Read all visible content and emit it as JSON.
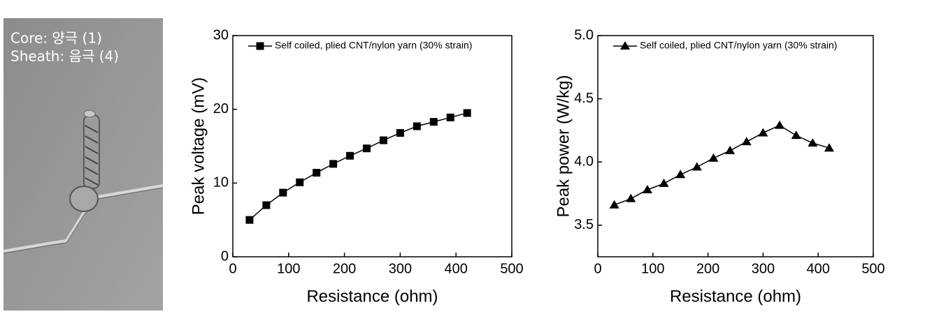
{
  "photo": {
    "labels": [
      "Core: 양극 (1)",
      "Sheath: 음극 (4)"
    ]
  },
  "chart_data": [
    {
      "type": "line",
      "x_label": "Resistance (ohm)",
      "y_label": "Peak voltage (mV)",
      "x": [
        30,
        60,
        90,
        120,
        150,
        180,
        210,
        240,
        270,
        300,
        330,
        360,
        390,
        420
      ],
      "series": [
        {
          "name": "Self coiled, plied CNT/nylon yarn (30% strain)",
          "color": "#000000",
          "marker": "square",
          "values": [
            5.0,
            7.0,
            8.7,
            10.1,
            11.4,
            12.6,
            13.7,
            14.7,
            15.8,
            16.8,
            17.7,
            18.3,
            18.9,
            19.5
          ]
        }
      ],
      "xlim": [
        0,
        500
      ],
      "xticks": [
        0,
        100,
        200,
        300,
        400,
        500
      ],
      "ylim": [
        0,
        30
      ],
      "yticks": [
        0,
        10,
        20,
        30
      ],
      "legend": "top-left"
    },
    {
      "type": "line",
      "x_label": "Resistance (ohm)",
      "y_label": "Peak power (W/kg)",
      "x": [
        30,
        60,
        90,
        120,
        150,
        180,
        210,
        240,
        270,
        300,
        330,
        360,
        390,
        420
      ],
      "series": [
        {
          "name": "Self coiled, plied CNT/nylon yarn (30% strain)",
          "color": "#000000",
          "marker": "triangle",
          "values": [
            3.66,
            3.71,
            3.78,
            3.83,
            3.9,
            3.96,
            4.03,
            4.09,
            4.16,
            4.23,
            4.29,
            4.21,
            4.15,
            4.11
          ]
        }
      ],
      "xlim": [
        0,
        500
      ],
      "xticks": [
        0,
        100,
        200,
        300,
        400,
        500
      ],
      "ylim": [
        3.25,
        5.0
      ],
      "yticks": [
        3.5,
        {
          "value": 4,
          "label": "4.0"
        },
        4.5,
        {
          "value": 5,
          "label": "5.0"
        }
      ],
      "legend": "top-left"
    }
  ]
}
